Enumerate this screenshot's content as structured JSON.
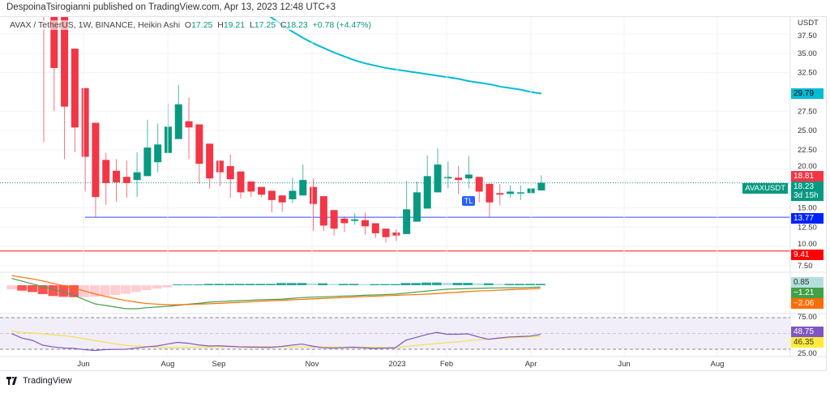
{
  "publisher_line": "DespoinaTsirogianni published on TradingView.com, Apr 13, 2023 12:48 UTC+3",
  "legend": {
    "symbol": "AVAX / TetherUS, 1W, BINANCE, Heikin Ashi",
    "o_label": "O",
    "o": "17.25",
    "h_label": "H",
    "h": "19.21",
    "l_label": "L",
    "l": "17.25",
    "c_label": "C",
    "c": "18.23",
    "change": "+0.78 (+4.47%)"
  },
  "price_axis": {
    "currency": "USDT",
    "ticks": [
      "37.50",
      "35.00",
      "32.50",
      "27.50",
      "25.00",
      "22.50",
      "20.00",
      "15.00",
      "12.50",
      "10.00",
      "7.50"
    ]
  },
  "time_axis": {
    "labels": [
      "Jun",
      "Aug",
      "Sep",
      "Nov",
      "2023",
      "Feb",
      "Apr",
      "Jun",
      "Aug"
    ]
  },
  "tags": {
    "ma": {
      "text": "29.79",
      "color": "#00bcd4"
    },
    "prev": {
      "text": "18.81",
      "color": "#f23645"
    },
    "symbol_tag": "AVAXUSDT",
    "last": {
      "text": "18.23",
      "countdown": "3d 15h",
      "color": "#089981"
    },
    "support": {
      "text": "13.77",
      "color": "#0022ff"
    },
    "low_line": {
      "text": "9.41",
      "color": "#ff0000"
    },
    "macd_hist": {
      "text": "0.85",
      "color": "#b2dfdb"
    },
    "macd_line": {
      "text": "−1.21",
      "color": "#43a047"
    },
    "macd_signal": {
      "text": "−2.06",
      "color": "#ff6d00"
    },
    "rsi": {
      "text": "48.75",
      "color": "#7e57c2"
    },
    "rsi_ma": {
      "text": "46.35",
      "color": "#ffeb3b"
    },
    "rsi_ticks": [
      "75.00",
      "25.00"
    ]
  },
  "tl_badge": "TL",
  "brand": "TradingView",
  "chart_data": {
    "type": "candlestick",
    "style": "Heikin Ashi",
    "interval": "1W",
    "ylim": [
      7.5,
      37.5
    ],
    "grid": true,
    "colors": {
      "up": "#089981",
      "down": "#f23645",
      "ma": "#00bcd4"
    },
    "candles": [
      [
        60,
        70,
        23.5,
        45
      ],
      [
        48,
        55,
        27.5,
        33.1
      ],
      [
        42,
        48,
        21.3,
        28.1
      ],
      [
        35.6,
        35.6,
        22.2,
        25.4
      ],
      [
        30.5,
        30.5,
        17.1,
        21.6
      ],
      [
        26.0,
        26.0,
        13.8,
        16.4
      ],
      [
        21.2,
        22.1,
        15.4,
        18.2
      ],
      [
        19.8,
        21.3,
        15.8,
        18.3
      ],
      [
        19.0,
        21.1,
        16.3,
        18.2
      ],
      [
        18.6,
        22.2,
        16.4,
        19.6
      ],
      [
        19.1,
        26.4,
        19.1,
        22.8
      ],
      [
        20.9,
        25.9,
        19.6,
        23.2
      ],
      [
        22.1,
        28.5,
        22.1,
        25.5
      ],
      [
        23.9,
        30.9,
        23.9,
        28.4
      ],
      [
        26.2,
        29.3,
        21.3,
        25.4
      ],
      [
        25.8,
        25.8,
        18.1,
        20.7
      ],
      [
        23.3,
        23.3,
        17.5,
        18.8
      ],
      [
        21.1,
        21.1,
        17.8,
        19.6
      ],
      [
        20.4,
        21.9,
        16.3,
        18.7
      ],
      [
        19.7,
        19.7,
        16.2,
        17.0
      ],
      [
        18.4,
        18.4,
        16.4,
        17.1
      ],
      [
        17.7,
        17.7,
        16.4,
        16.7
      ],
      [
        17.2,
        17.2,
        14.4,
        16.0
      ],
      [
        16.6,
        16.6,
        14.5,
        15.7
      ],
      [
        16.1,
        18.9,
        15.6,
        17.2
      ],
      [
        16.6,
        20.6,
        16.6,
        18.6
      ],
      [
        17.7,
        18.8,
        12.0,
        15.5
      ],
      [
        16.5,
        16.5,
        12.0,
        12.7
      ],
      [
        14.7,
        14.7,
        11.4,
        12.3
      ],
      [
        13.6,
        13.9,
        11.9,
        13.0
      ],
      [
        13.3,
        14.3,
        12.8,
        13.5
      ],
      [
        13.4,
        14.4,
        11.5,
        12.6
      ],
      [
        13.0,
        13.0,
        11.1,
        11.7
      ],
      [
        12.3,
        12.3,
        10.5,
        11.2
      ],
      [
        11.8,
        12.2,
        10.7,
        11.4
      ],
      [
        11.6,
        18.5,
        11.6,
        14.8
      ],
      [
        13.2,
        18.4,
        13.2,
        17.0
      ],
      [
        14.9,
        21.8,
        14.9,
        19.1
      ],
      [
        17.0,
        22.7,
        17.0,
        20.6
      ],
      [
        18.8,
        21.0,
        17.5,
        19.0
      ],
      [
        18.9,
        20.4,
        16.8,
        18.6
      ],
      [
        18.8,
        21.7,
        17.5,
        19.3
      ],
      [
        19.0,
        19.0,
        15.7,
        17.1
      ],
      [
        18.1,
        18.1,
        13.8,
        15.7
      ],
      [
        16.9,
        18.1,
        15.3,
        16.7
      ],
      [
        16.8,
        17.9,
        16.3,
        17.1
      ],
      [
        16.9,
        17.9,
        16.0,
        17.0
      ],
      [
        16.9,
        18.4,
        16.6,
        17.5
      ],
      [
        17.25,
        19.21,
        17.25,
        18.23
      ]
    ],
    "moving_average": [
      null,
      null,
      null,
      null,
      null,
      null,
      null,
      null,
      null,
      null,
      null,
      null,
      null,
      null,
      null,
      null,
      null,
      null,
      null,
      null,
      null,
      40.6,
      39.6,
      38.7,
      37.8,
      37.0,
      36.3,
      35.7,
      35.1,
      34.6,
      34.1,
      33.7,
      33.4,
      33.1,
      32.9,
      32.7,
      32.5,
      32.3,
      32.1,
      31.9,
      31.7,
      31.4,
      31.2,
      31.0,
      30.7,
      30.5,
      30.3,
      30.0,
      29.79
    ],
    "horizontal_lines": [
      {
        "value": 13.77,
        "color": "#5b6cff"
      },
      {
        "value": 9.41,
        "color": "#ff5252"
      },
      {
        "value": 18.23,
        "color": "#089981",
        "style": "dotted"
      }
    ],
    "macd": {
      "histogram": [
        -2.6,
        -3.4,
        -4.3,
        -5.6,
        -6.8,
        -7.3,
        -7.5,
        -7.5,
        -7.3,
        -6.8,
        -6.1,
        -5.4,
        -4.3,
        -3.1,
        -2.2,
        -1.4,
        0.5,
        0.5,
        0.5,
        0.85,
        0.85,
        0.85,
        0.85,
        0.85,
        0.85,
        0.85,
        1.4,
        1.4,
        1.4,
        1.2,
        1.2,
        0.85,
        0.85,
        0.85,
        0.7,
        0.7,
        0.7,
        0.7,
        1.4,
        1.4,
        1.7,
        1.7,
        1.5,
        1.5,
        1.5,
        1.2,
        1.2,
        0.85,
        0.85,
        0.85,
        0.85,
        0.85
      ],
      "macd": [
        4.3,
        2.6,
        0.8,
        -0.9,
        -2.6,
        -4.3,
        -6.3,
        -9.1,
        -11.7,
        -12.7,
        -13.7,
        -14.8,
        -14.8,
        -14.2,
        -13.7,
        -13.3,
        -12.7,
        -12.0,
        -11.4,
        -10.7,
        -10.3,
        -10.0,
        -9.7,
        -9.5,
        -9.2,
        -9.0,
        -8.8,
        -8.3,
        -7.8,
        -7.5,
        -7.3,
        -7.1,
        -6.8,
        -6.6,
        -6.3,
        -6.1,
        -5.9,
        -5.6,
        -5.0,
        -4.3,
        -3.7,
        -3.1,
        -2.5,
        -2.3,
        -2.1,
        -1.9,
        -1.8,
        -1.7,
        -1.6,
        -1.5,
        -1.3,
        -1.21
      ],
      "signal": [
        6.1,
        5.0,
        4.0,
        2.7,
        1.2,
        -0.3,
        -1.9,
        -3.6,
        -5.4,
        -7.0,
        -8.4,
        -9.6,
        -10.6,
        -11.5,
        -11.9,
        -12.3,
        -12.3,
        -12.1,
        -11.9,
        -11.7,
        -11.4,
        -11.1,
        -10.8,
        -10.5,
        -10.1,
        -9.8,
        -9.5,
        -9.2,
        -8.9,
        -8.6,
        -8.3,
        -8.0,
        -7.7,
        -7.4,
        -7.1,
        -6.9,
        -6.6,
        -6.4,
        -6.1,
        -5.9,
        -5.6,
        -5.3,
        -4.8,
        -4.4,
        -4.0,
        -3.6,
        -3.4,
        -3.1,
        -2.8,
        -2.5,
        -2.3,
        -2.06
      ],
      "colors": {
        "grow_up": "#26a69a",
        "fall_up": "#b2dfdb",
        "grow_down": "#ffcdd2",
        "fall_down": "#ff5252",
        "macd": "#43a047",
        "signal": "#ff6d00"
      }
    },
    "rsi": {
      "bands": [
        70,
        50,
        30
      ],
      "values": [
        49.8,
        44.0,
        41.3,
        35.1,
        33,
        31.6,
        31.0,
        29.5,
        28.5,
        29.5,
        29.8,
        30.0,
        31.5,
        33.0,
        34.1,
        36.5,
        38.7,
        37.6,
        35.5,
        34.1,
        34.4,
        33.7,
        33.0,
        32.7,
        32.6,
        32.4,
        33.5,
        35.2,
        36.6,
        34.0,
        32.0,
        31.5,
        32.0,
        32.6,
        31.8,
        31.0,
        31.5,
        31.8,
        41.3,
        44.9,
        48.5,
        51.3,
        49.0,
        49.0,
        49.5,
        45.7,
        42.6,
        44.2,
        45.6,
        46.0,
        46.6,
        48.75
      ],
      "ma": [
        52.6,
        51.5,
        50.5,
        49.5,
        48.3,
        47.2,
        45.6,
        43.3,
        41.0,
        38.8,
        36.7,
        35.0,
        34.0,
        33.3,
        32.6,
        32.2,
        32.3,
        32.5,
        32.7,
        32.9,
        33.1,
        33.2,
        33.3,
        33.4,
        33.3,
        33.2,
        33.1,
        33.0,
        32.9,
        32.9,
        32.8,
        32.8,
        32.7,
        32.7,
        32.6,
        32.4,
        32.2,
        32.1,
        33.5,
        34.8,
        36.0,
        37.2,
        38.4,
        39.5,
        40.7,
        41.9,
        42.8,
        43.5,
        44.3,
        45.0,
        45.7,
        46.35
      ],
      "colors": {
        "rsi": "#7e57c2",
        "ma": "#f5e050",
        "band_fill": "#f1eef9"
      }
    }
  }
}
